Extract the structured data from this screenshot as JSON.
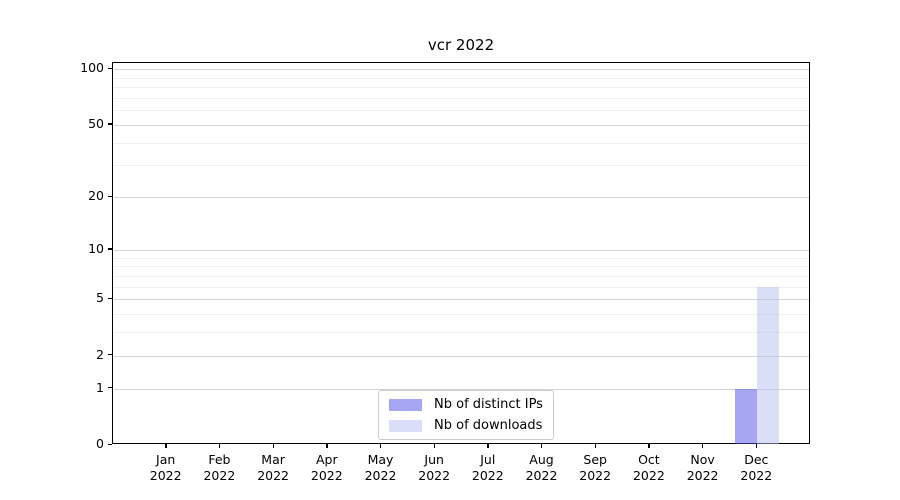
{
  "chart_data": {
    "type": "bar",
    "title": "vcr 2022",
    "categories": [
      {
        "month": "Jan",
        "year": "2022"
      },
      {
        "month": "Feb",
        "year": "2022"
      },
      {
        "month": "Mar",
        "year": "2022"
      },
      {
        "month": "Apr",
        "year": "2022"
      },
      {
        "month": "May",
        "year": "2022"
      },
      {
        "month": "Jun",
        "year": "2022"
      },
      {
        "month": "Jul",
        "year": "2022"
      },
      {
        "month": "Aug",
        "year": "2022"
      },
      {
        "month": "Sep",
        "year": "2022"
      },
      {
        "month": "Oct",
        "year": "2022"
      },
      {
        "month": "Nov",
        "year": "2022"
      },
      {
        "month": "Dec",
        "year": "2022"
      }
    ],
    "series": [
      {
        "name": "Nb of distinct IPs",
        "color": "#a5a5f3",
        "fill_rgba": "rgba(77,77,235,0.5)",
        "values": [
          0,
          0,
          0,
          0,
          0,
          0,
          0,
          0,
          0,
          0,
          0,
          1
        ]
      },
      {
        "name": "Nb of downloads",
        "color": "#dbdefa",
        "fill_rgba": "rgba(183,189,244,0.5)",
        "values": [
          0,
          0,
          0,
          0,
          0,
          0,
          0,
          0,
          0,
          0,
          0,
          6
        ]
      }
    ],
    "xlabel": "",
    "ylabel": "",
    "yscale": "log1p",
    "ylim": [
      0,
      108
    ],
    "ytick_values": [
      0,
      1,
      2,
      5,
      10,
      20,
      50,
      100
    ],
    "ytick_labels": [
      "0",
      "1",
      "2",
      "5",
      "10",
      "20",
      "50",
      "100"
    ],
    "minor_ytick_values": [
      3,
      4,
      6,
      7,
      8,
      9,
      30,
      40,
      60,
      70,
      80,
      90
    ],
    "grid": true,
    "legend_position": "lower center",
    "colors": {
      "major_grid": "#d5d5d5",
      "minor_grid": "#f0f0f0",
      "axis": "#000000",
      "legend_border": "#cccccc"
    }
  }
}
